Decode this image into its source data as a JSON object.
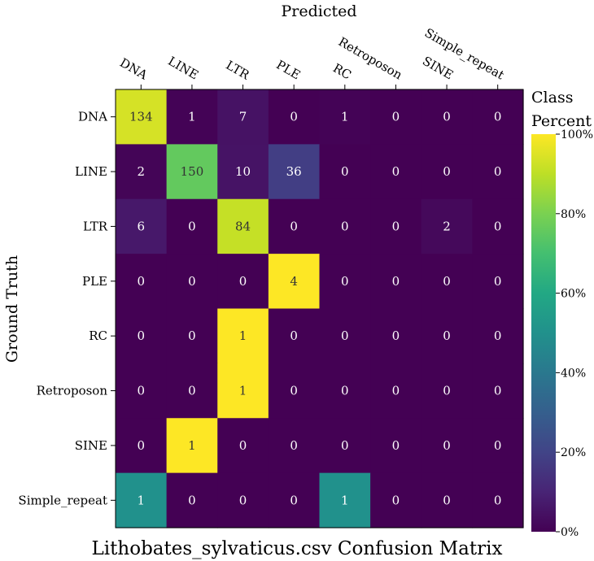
{
  "chart_data": {
    "type": "heatmap",
    "title": "Lithobates_sylvaticus.csv Confusion Matrix",
    "xlabel": "Predicted",
    "ylabel": "Ground Truth",
    "x_categories": [
      "DNA",
      "LINE",
      "LTR",
      "PLE",
      "RC",
      "Retroposon",
      "SINE",
      "Simple_repeat"
    ],
    "y_categories": [
      "DNA",
      "LINE",
      "LTR",
      "PLE",
      "RC",
      "Retroposon",
      "SINE",
      "Simple_repeat"
    ],
    "values": [
      [
        134,
        1,
        7,
        0,
        1,
        0,
        0,
        0
      ],
      [
        2,
        150,
        10,
        36,
        0,
        0,
        0,
        0
      ],
      [
        6,
        0,
        84,
        0,
        0,
        0,
        2,
        0
      ],
      [
        0,
        0,
        0,
        4,
        0,
        0,
        0,
        0
      ],
      [
        0,
        0,
        1,
        0,
        0,
        0,
        0,
        0
      ],
      [
        0,
        0,
        1,
        0,
        0,
        0,
        0,
        0
      ],
      [
        0,
        1,
        0,
        0,
        0,
        0,
        0,
        0
      ],
      [
        1,
        0,
        0,
        0,
        1,
        0,
        0,
        0
      ]
    ],
    "color_scale": {
      "title_line1": "Class",
      "title_line2": "Percent",
      "normalization": "row",
      "range": [
        0,
        100
      ],
      "ticks": [
        "0%",
        "20%",
        "40%",
        "60%",
        "80%",
        "100%"
      ],
      "colormap": "viridis"
    },
    "grid": false
  }
}
